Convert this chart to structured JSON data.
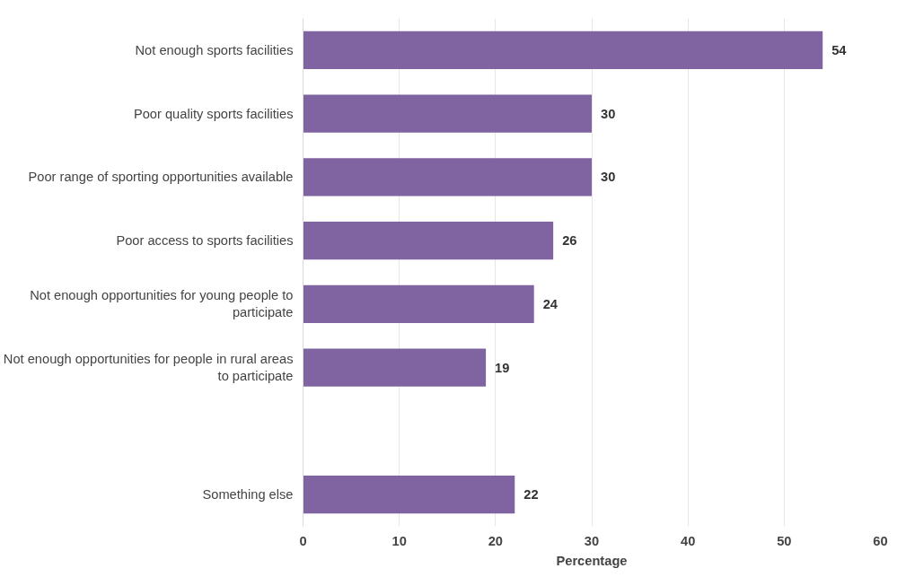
{
  "chart_data": {
    "type": "bar",
    "orientation": "horizontal",
    "xlabel": "Percentage",
    "categories": [
      "Not enough sports facilities",
      "Poor quality sports facilities",
      "Poor range of sporting opportunities available",
      "Poor access to sports facilities",
      "Not enough opportunities for young people to participate",
      "Not enough opportunities for people in rural areas to participate",
      null,
      "Something else"
    ],
    "values": [
      54,
      30,
      30,
      26,
      24,
      19,
      null,
      22
    ],
    "color": "#8064a2",
    "xlim": [
      0,
      60
    ],
    "xticks": [
      0,
      10,
      20,
      30,
      40,
      50,
      60
    ],
    "grid": "x",
    "data_labels": true
  }
}
